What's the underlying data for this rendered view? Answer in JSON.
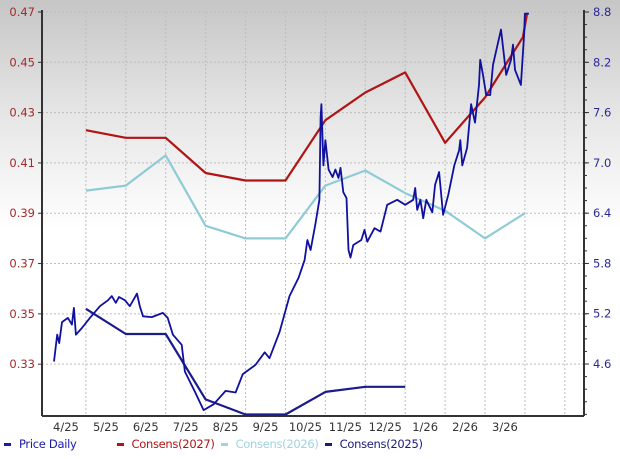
{
  "chart_data": {
    "type": "line",
    "title": "",
    "x_unit": "months since 2025-04-01",
    "xlim": [
      -0.1,
      13.48
    ],
    "x_tick_labels": [
      "4/25",
      "5/25",
      "6/25",
      "7/25",
      "8/25",
      "9/25",
      "10/25",
      "11/25",
      "12/25",
      "1/26",
      "2/26",
      "3/26"
    ],
    "x_tick_positions": [
      0.5,
      1.5,
      2.5,
      3.5,
      4.5,
      5.5,
      6.5,
      7.5,
      8.5,
      9.5,
      10.5,
      11.5
    ],
    "x_grid": [
      1,
      2,
      3,
      4,
      5,
      6,
      7,
      8,
      9,
      10,
      11,
      12,
      13
    ],
    "left_axis": {
      "ylim": [
        0.3094,
        0.47
      ],
      "ticks": [
        0.33,
        0.35,
        0.37,
        0.39,
        0.41,
        0.43,
        0.45,
        0.47
      ],
      "tick_labels": [
        "0.33",
        "0.35",
        "0.37",
        "0.39",
        "0.41",
        "0.43",
        "0.45",
        "0.47"
      ],
      "color": "#a52a2a"
    },
    "right_axis": {
      "ylim": [
        3.98,
        8.8
      ],
      "ticks": [
        4.6,
        5.2,
        5.8,
        6.4,
        7.0,
        7.6,
        8.2,
        8.8
      ],
      "tick_labels": [
        "4.6",
        "5.2",
        "5.8",
        "6.4",
        "7.0",
        "7.6",
        "8.2",
        "8.8"
      ],
      "color": "#2a2a9a"
    },
    "grid": true,
    "legend_position": "bottom",
    "series": [
      {
        "name": "Consens(2027)",
        "axis": "left",
        "color": "#b01515",
        "x": [
          1,
          2,
          3,
          4,
          5,
          6,
          7,
          8,
          9,
          10,
          11,
          11.95,
          12.05
        ],
        "y": [
          0.423,
          0.42,
          0.42,
          0.406,
          0.403,
          0.403,
          0.427,
          0.438,
          0.446,
          0.418,
          0.436,
          0.46,
          0.469
        ]
      },
      {
        "name": "Consens(2026)",
        "axis": "left",
        "color": "#8fcbd6",
        "x": [
          1,
          2,
          3,
          4,
          5,
          6,
          7,
          8,
          9,
          10,
          11,
          12
        ],
        "y": [
          0.399,
          0.401,
          0.413,
          0.385,
          0.38,
          0.38,
          0.401,
          0.407,
          0.398,
          0.391,
          0.38,
          0.39
        ]
      },
      {
        "name": "Consens(2025)",
        "axis": "left",
        "color": "#1b1b8a",
        "x": [
          1,
          2,
          3,
          4,
          5,
          6,
          7,
          8,
          9
        ],
        "y": [
          0.352,
          0.342,
          0.342,
          0.316,
          0.31,
          0.31,
          0.319,
          0.321,
          0.321
        ]
      },
      {
        "name": "Price Daily",
        "axis": "right",
        "color": "#1010a0",
        "x": [
          0.2,
          0.28,
          0.33,
          0.4,
          0.55,
          0.65,
          0.7,
          0.75,
          0.9,
          1.1,
          1.35,
          1.55,
          1.65,
          1.75,
          1.83,
          1.98,
          2.1,
          2.28,
          2.35,
          2.43,
          2.65,
          2.93,
          3.05,
          3.18,
          3.4,
          3.48,
          3.73,
          3.95,
          4.2,
          4.5,
          4.75,
          4.93,
          5.25,
          5.48,
          5.6,
          5.85,
          6.1,
          6.33,
          6.48,
          6.55,
          6.63,
          6.75,
          6.85,
          6.88,
          6.9,
          6.95,
          7.0,
          7.08,
          7.18,
          7.25,
          7.33,
          7.38,
          7.45,
          7.53,
          7.58,
          7.63,
          7.7,
          7.9,
          7.98,
          8.05,
          8.23,
          8.38,
          8.55,
          8.8,
          9.0,
          9.2,
          9.25,
          9.3,
          9.38,
          9.45,
          9.53,
          9.68,
          9.75,
          9.85,
          9.95,
          10.08,
          10.23,
          10.35,
          10.38,
          10.43,
          10.55,
          10.65,
          10.75,
          10.85,
          10.88,
          10.95,
          11.03,
          11.13,
          11.2,
          11.4,
          11.53,
          11.65,
          11.7,
          11.75,
          11.9,
          11.98,
          12.0,
          12.1
        ],
        "y": [
          4.63,
          4.95,
          4.85,
          5.1,
          5.15,
          5.07,
          5.27,
          4.95,
          5.03,
          5.15,
          5.29,
          5.36,
          5.41,
          5.33,
          5.4,
          5.36,
          5.29,
          5.44,
          5.29,
          5.17,
          5.16,
          5.21,
          5.15,
          4.95,
          4.83,
          4.51,
          4.27,
          4.05,
          4.12,
          4.28,
          4.26,
          4.48,
          4.59,
          4.74,
          4.67,
          4.98,
          5.41,
          5.63,
          5.84,
          6.08,
          5.96,
          6.27,
          6.56,
          7.54,
          7.7,
          6.97,
          7.27,
          6.92,
          6.83,
          6.92,
          6.82,
          6.94,
          6.65,
          6.58,
          5.96,
          5.87,
          6.02,
          6.08,
          6.2,
          6.06,
          6.22,
          6.18,
          6.5,
          6.56,
          6.5,
          6.56,
          6.7,
          6.44,
          6.56,
          6.34,
          6.56,
          6.41,
          6.74,
          6.89,
          6.38,
          6.62,
          6.97,
          7.15,
          7.27,
          6.97,
          7.18,
          7.7,
          7.48,
          7.93,
          8.23,
          8.05,
          7.81,
          7.81,
          8.17,
          8.59,
          8.05,
          8.23,
          8.41,
          8.11,
          7.93,
          8.53,
          8.78,
          8.78
        ]
      }
    ]
  },
  "legend": [
    {
      "label": "Price Daily",
      "color": "#1a1aa8"
    },
    {
      "label": "Consens(2027)",
      "color": "#b01515"
    },
    {
      "label": "Consens(2026)",
      "color": "#9fd3de"
    },
    {
      "label": "Consens(2025)",
      "color": "#1b1b7a"
    }
  ]
}
